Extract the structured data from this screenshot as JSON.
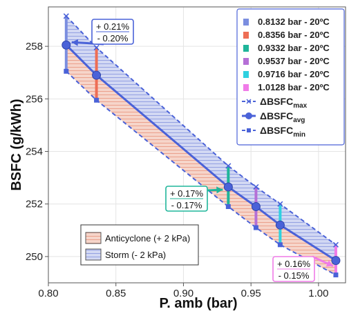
{
  "chart_data": {
    "type": "line",
    "xlabel": "P. amb (bar)",
    "ylabel": "BSFC (g/kWh)",
    "xlim": [
      0.8,
      1.02
    ],
    "ylim": [
      249.0,
      259.5
    ],
    "x_ticks": [
      "0.80",
      "0.85",
      "0.90",
      "0.95",
      "1.00"
    ],
    "x_tick_values": [
      0.8,
      0.85,
      0.9,
      0.95,
      1.0
    ],
    "y_ticks": [
      "250",
      "252",
      "254",
      "256",
      "258"
    ],
    "y_tick_values": [
      250,
      252,
      254,
      256,
      258
    ],
    "grid": true,
    "x": [
      0.8132,
      0.8356,
      0.9332,
      0.9537,
      0.9716,
      1.0128
    ],
    "series": [
      {
        "name": "ΔBSFC_max",
        "values": [
          259.15,
          257.95,
          253.45,
          252.65,
          252.0,
          250.45
        ]
      },
      {
        "name": "ΔBSFC_avg",
        "values": [
          258.05,
          256.9,
          252.65,
          251.9,
          251.2,
          249.85
        ]
      },
      {
        "name": "ΔBSFC_min",
        "values": [
          257.05,
          255.95,
          251.9,
          251.1,
          250.45,
          249.3
        ]
      }
    ],
    "point_colors": [
      "#7b8ee0",
      "#ee6e55",
      "#1fb59a",
      "#b56fd6",
      "#2fd1e0",
      "#f07be8"
    ],
    "legend_top": {
      "placement": "top-right",
      "entries": [
        {
          "label": "0.8132 bar - 20ºC",
          "color": "#7b8ee0"
        },
        {
          "label": "0.8356 bar - 20ºC",
          "color": "#ee6e55"
        },
        {
          "label": "0.9332 bar - 20ºC",
          "color": "#1fb59a"
        },
        {
          "label": "0.9537 bar - 20ºC",
          "color": "#b56fd6"
        },
        {
          "label": "0.9716 bar - 20ºC",
          "color": "#2fd1e0"
        },
        {
          "label": "1.0128 bar - 20ºC",
          "color": "#f07be8"
        }
      ],
      "line_entries": [
        {
          "label": "ΔBSFC",
          "sub": "max"
        },
        {
          "label": "ΔBSFC",
          "sub": "avg"
        },
        {
          "label": "ΔBSFC",
          "sub": "min"
        }
      ]
    },
    "legend_bottom": {
      "placement": "bottom-left",
      "entries": [
        {
          "label": "Anticyclone (+ 2 kPa)",
          "color": "#f3c3b3"
        },
        {
          "label": "Storm (- 2 kPa)",
          "color": "#b5bfe6"
        }
      ]
    },
    "annotations": [
      {
        "plus": "+ 0.21%",
        "minus": "- 0.20%",
        "color": "#4a62d8"
      },
      {
        "plus": "+ 0.17%",
        "minus": "- 0.17%",
        "color": "#1fb59a"
      },
      {
        "plus": "+ 0.16%",
        "minus": "- 0.15%",
        "color": "#f07be8"
      }
    ],
    "colors": {
      "main": "#4a62d8",
      "axis": "#555555",
      "grid": "#e4e4e4"
    }
  }
}
